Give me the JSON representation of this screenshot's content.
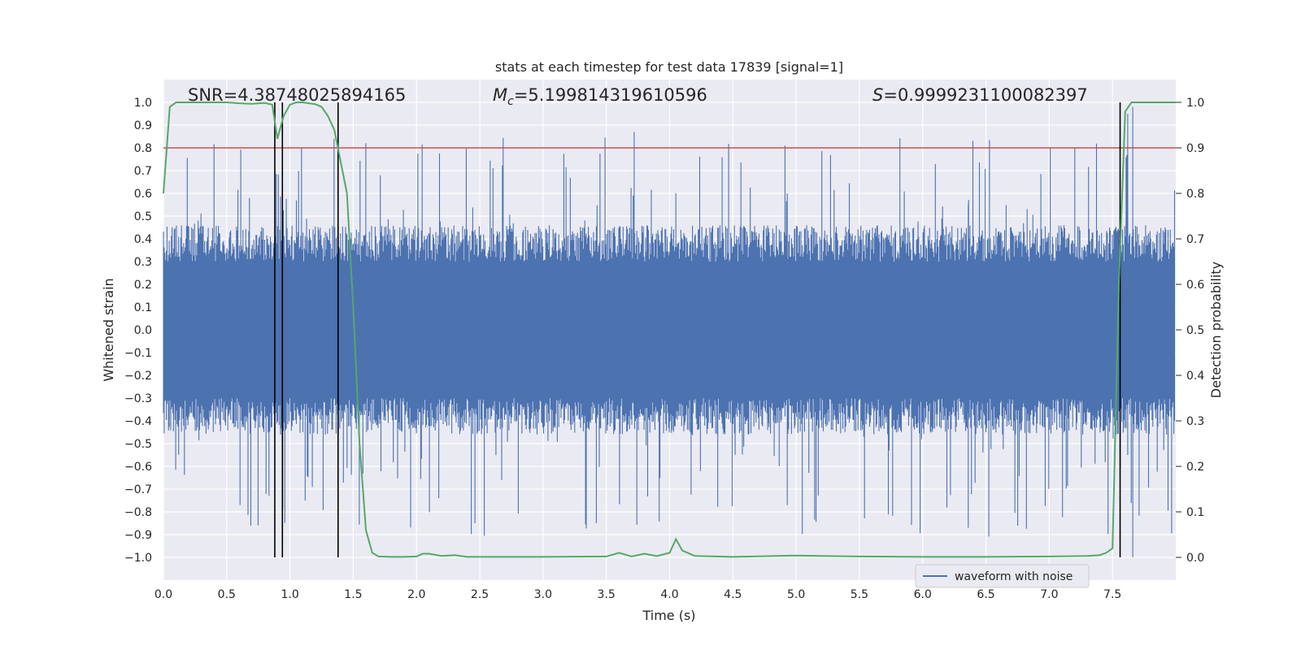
{
  "chart_data": {
    "type": "line",
    "title": "stats at each timestep for test data 17839 [signal=1]",
    "xlabel": "Time (s)",
    "ylabel": "Whitened strain",
    "y2label": "Detection probability",
    "xlim": [
      0.0,
      8.0
    ],
    "ylim": [
      -1.1,
      1.1
    ],
    "y2lim": [
      -0.05,
      1.05
    ],
    "xticks": [
      "0.0",
      "0.5",
      "1.0",
      "1.5",
      "2.0",
      "2.5",
      "3.0",
      "3.5",
      "4.0",
      "4.5",
      "5.0",
      "5.5",
      "6.0",
      "6.5",
      "7.0",
      "7.5"
    ],
    "yticks": [
      "−1.0",
      "−0.9",
      "−0.8",
      "−0.7",
      "−0.6",
      "−0.5",
      "−0.4",
      "−0.3",
      "−0.2",
      "−0.1",
      "0.0",
      "0.1",
      "0.2",
      "0.3",
      "0.4",
      "0.5",
      "0.6",
      "0.7",
      "0.8",
      "0.9",
      "1.0"
    ],
    "y2ticks": [
      "0.0",
      "0.1",
      "0.2",
      "0.3",
      "0.4",
      "0.5",
      "0.6",
      "0.7",
      "0.8",
      "0.9",
      "1.0"
    ],
    "annotations": {
      "snr": "SNR=4.38748025894165",
      "mc_prefix": "M",
      "mc_sub": "c",
      "mc_value": "=5.199814319610596",
      "s_prefix": "S",
      "s_value": "=0.9999231100082397"
    },
    "legend": {
      "label": "waveform with noise",
      "location": "lower-right"
    },
    "threshold": {
      "detection_probability": 0.9,
      "color": "#c44e52"
    },
    "vlines_time": [
      0.88,
      0.94,
      1.38,
      7.56
    ],
    "series": [
      {
        "name": "waveform with noise",
        "color": "#4c72b0",
        "noise_envelope": {
          "typical": 0.4,
          "peak_max": 0.87,
          "peak_min": -1.0
        }
      },
      {
        "name": "detection probability",
        "color": "#55a868",
        "x": [
          0.0,
          0.05,
          0.1,
          0.2,
          0.3,
          0.4,
          0.5,
          0.6,
          0.7,
          0.8,
          0.86,
          0.9,
          0.95,
          1.0,
          1.05,
          1.1,
          1.2,
          1.25,
          1.3,
          1.35,
          1.4,
          1.45,
          1.5,
          1.55,
          1.6,
          1.65,
          1.7,
          1.8,
          1.9,
          2.0,
          2.05,
          2.1,
          2.2,
          2.3,
          2.4,
          2.5,
          3.0,
          3.5,
          3.6,
          3.7,
          3.8,
          3.9,
          4.0,
          4.05,
          4.1,
          4.2,
          4.5,
          5.0,
          5.5,
          6.0,
          6.5,
          7.0,
          7.3,
          7.4,
          7.45,
          7.5,
          7.55,
          7.6,
          7.65,
          7.7,
          7.8,
          7.9,
          8.0
        ],
        "values": [
          0.8,
          0.99,
          1.0,
          1.0,
          1.0,
          1.0,
          1.0,
          0.998,
          0.997,
          0.999,
          0.995,
          0.92,
          0.97,
          0.995,
          1.0,
          1.0,
          0.996,
          0.99,
          0.97,
          0.94,
          0.87,
          0.8,
          0.55,
          0.25,
          0.06,
          0.01,
          0.002,
          0.001,
          0.001,
          0.002,
          0.008,
          0.008,
          0.003,
          0.005,
          0.001,
          0.001,
          0.001,
          0.002,
          0.01,
          0.002,
          0.008,
          0.003,
          0.01,
          0.04,
          0.015,
          0.003,
          0.001,
          0.004,
          0.002,
          0.001,
          0.001,
          0.002,
          0.003,
          0.005,
          0.01,
          0.02,
          0.6,
          0.98,
          1.0,
          1.0,
          1.0,
          1.0,
          1.0
        ]
      }
    ]
  }
}
